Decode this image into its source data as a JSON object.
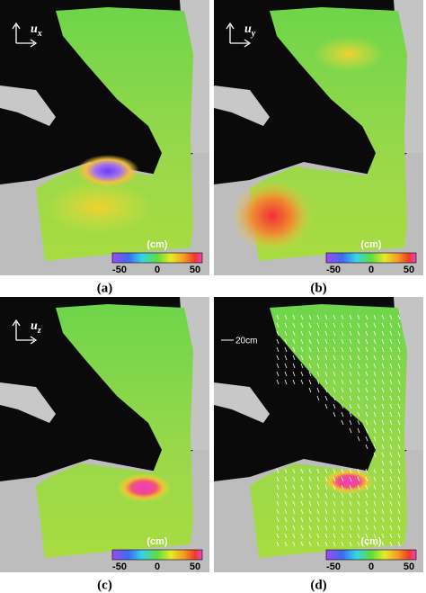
{
  "panels": [
    {
      "label": "(a)",
      "component": {
        "base": "u",
        "sub": "x"
      },
      "colorbar": {
        "unit": "(cm)",
        "ticks": [
          -50,
          0,
          50
        ]
      }
    },
    {
      "label": "(b)",
      "component": {
        "base": "u",
        "sub": "y"
      },
      "colorbar": {
        "unit": "(cm)",
        "ticks": [
          -50,
          0,
          50
        ]
      }
    },
    {
      "label": "(c)",
      "component": {
        "base": "u",
        "sub": "z"
      },
      "colorbar": {
        "unit": "(cm)",
        "ticks": [
          -50,
          0,
          50
        ]
      }
    },
    {
      "label": "(d)",
      "scale_label": "20cm",
      "colorbar": {
        "unit": "(cm)",
        "ticks": [
          -50,
          0,
          50
        ]
      }
    }
  ]
}
